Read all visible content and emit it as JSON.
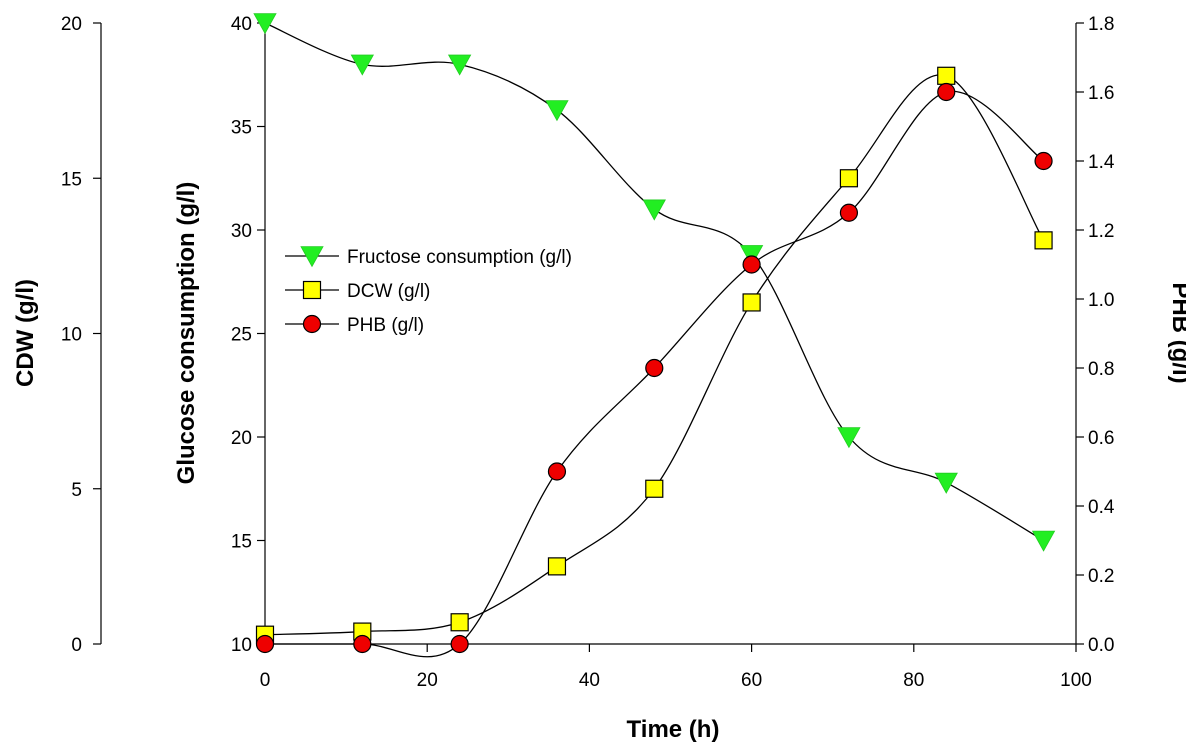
{
  "chart_data": {
    "type": "line",
    "xlabel": "Time (h)",
    "xlim": [
      0,
      100
    ],
    "x_ticks": [
      "0",
      "20",
      "40",
      "60",
      "80",
      "100"
    ],
    "axes": {
      "left_outer": {
        "label": "CDW (g/l)",
        "lim": [
          0,
          20
        ],
        "ticks": [
          "0",
          "5",
          "10",
          "15",
          "20"
        ]
      },
      "left_inner": {
        "label": "Glucose consumption (g/l)",
        "lim": [
          10,
          40
        ],
        "ticks": [
          "10",
          "15",
          "20",
          "25",
          "30",
          "35",
          "40"
        ]
      },
      "right": {
        "label": "PHB (g/l)",
        "lim": [
          0,
          1.8
        ],
        "ticks": [
          "0.0",
          "0.2",
          "0.4",
          "0.6",
          "0.8",
          "1.0",
          "1.2",
          "1.4",
          "1.6",
          "1.8"
        ]
      }
    },
    "series": [
      {
        "name": "Fructose consumption (g/l)",
        "axis": "left_inner",
        "marker": "triangle-down",
        "color": "#22ee22",
        "x": [
          0,
          12,
          24,
          36,
          48,
          60,
          72,
          84,
          96
        ],
        "y": [
          40.0,
          38.0,
          38.0,
          35.8,
          31.0,
          28.8,
          20.0,
          17.8,
          15.0
        ]
      },
      {
        "name": "DCW (g/l)",
        "axis": "left_outer",
        "marker": "square",
        "color": "#ffff00",
        "x": [
          0,
          12,
          24,
          36,
          48,
          60,
          72,
          84,
          96
        ],
        "y": [
          0.3,
          0.4,
          0.7,
          2.5,
          5.0,
          11.0,
          15.0,
          18.3,
          13.0
        ]
      },
      {
        "name": "PHB (g/l)",
        "axis": "right",
        "marker": "circle",
        "color": "#ee0000",
        "x": [
          0,
          12,
          24,
          36,
          48,
          60,
          72,
          84,
          96
        ],
        "y": [
          0.0,
          0.0,
          0.0,
          0.5,
          0.8,
          1.1,
          1.25,
          1.6,
          1.4
        ]
      }
    ],
    "legend_position": "center-left",
    "grid": false
  }
}
